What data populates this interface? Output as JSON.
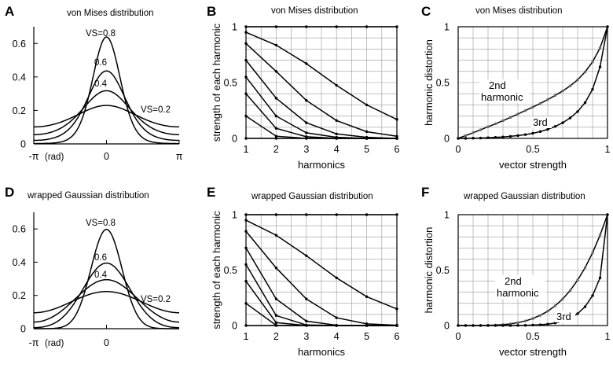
{
  "figure": {
    "panels": [
      {
        "label": "A",
        "title": "von Mises distribution"
      },
      {
        "label": "B",
        "title": "von Mises distribution"
      },
      {
        "label": "C",
        "title": "von Mises distribution"
      },
      {
        "label": "D",
        "title": "wrapped Gaussian distribution"
      },
      {
        "label": "E",
        "title": "wrapped Gaussian distribution"
      },
      {
        "label": "F",
        "title": "wrapped Gaussian distribution"
      }
    ]
  },
  "chart_data": [
    {
      "panel": "A",
      "type": "line",
      "title": "von Mises distribution",
      "family": "vonmises",
      "xticks": [
        "-π",
        "0",
        "π"
      ],
      "xunit": "(rad)",
      "xlim": [
        -3.1416,
        3.1416
      ],
      "ylim": [
        0,
        0.7
      ],
      "yticks": [
        0,
        0.2,
        0.4,
        0.6
      ],
      "series": [
        {
          "name": "VS=0.8",
          "label": "VS=0.8",
          "vs": 0.8
        },
        {
          "name": "VS=0.6",
          "label": "0.6",
          "vs": 0.6
        },
        {
          "name": "VS=0.4",
          "label": "0.4",
          "vs": 0.4
        },
        {
          "name": "VS=0.2",
          "label": "VS=0.2",
          "vs": 0.2
        }
      ]
    },
    {
      "panel": "B",
      "type": "line",
      "title": "von Mises distribution",
      "family": "vonmises",
      "xlabel": "harmonics",
      "ylabel": "strength of each harmonic",
      "x": [
        1,
        2,
        3,
        4,
        5,
        6
      ],
      "xlim": [
        1,
        6
      ],
      "ylim": [
        0,
        1
      ],
      "yticks": [
        0,
        0.5,
        1
      ],
      "series": [
        {
          "vs": 1.0,
          "values": [
            1,
            1,
            1,
            1,
            1,
            1
          ]
        },
        {
          "vs": 0.95,
          "values": [
            0.95,
            0.835,
            0.67,
            0.475,
            0.3,
            0.17
          ]
        },
        {
          "vs": 0.85,
          "values": [
            0.85,
            0.6,
            0.34,
            0.16,
            0.06,
            0.02
          ]
        },
        {
          "vs": 0.7,
          "values": [
            0.7,
            0.36,
            0.14,
            0.04,
            0.01,
            0
          ]
        },
        {
          "vs": 0.55,
          "values": [
            0.55,
            0.2,
            0.05,
            0.01,
            0,
            0
          ]
        },
        {
          "vs": 0.4,
          "values": [
            0.4,
            0.09,
            0.015,
            0,
            0,
            0
          ]
        },
        {
          "vs": 0.2,
          "values": [
            0.2,
            0.02,
            0,
            0,
            0,
            0
          ]
        },
        {
          "vs": 0.0,
          "values": [
            0,
            0,
            0,
            0,
            0,
            0
          ]
        }
      ]
    },
    {
      "panel": "C",
      "type": "line",
      "title": "von Mises distribution",
      "family": "vonmises",
      "xlabel": "vector strength",
      "ylabel": "harmonic distortion",
      "xlim": [
        0,
        1
      ],
      "ylim": [
        0,
        1
      ],
      "xticks": [
        0,
        0.5,
        1
      ],
      "yticks": [
        0,
        0.5,
        1
      ],
      "x": [
        0,
        0.05,
        0.1,
        0.15,
        0.2,
        0.25,
        0.3,
        0.35,
        0.4,
        0.45,
        0.5,
        0.55,
        0.6,
        0.65,
        0.7,
        0.75,
        0.8,
        0.85,
        0.9,
        0.95,
        1.0
      ],
      "series": [
        {
          "name": "2nd harmonic",
          "label_line1": "2nd",
          "label_line2": "harmonic",
          "values": [
            0,
            0.025,
            0.051,
            0.077,
            0.104,
            0.131,
            0.159,
            0.188,
            0.218,
            0.249,
            0.28,
            0.313,
            0.348,
            0.385,
            0.425,
            0.47,
            0.525,
            0.595,
            0.685,
            0.81,
            1.0
          ]
        },
        {
          "name": "3rd",
          "label": "3rd",
          "values": [
            0,
            0,
            0.002,
            0.003,
            0.006,
            0.009,
            0.013,
            0.018,
            0.025,
            0.034,
            0.046,
            0.061,
            0.081,
            0.107,
            0.14,
            0.183,
            0.24,
            0.32,
            0.44,
            0.64,
            1.0
          ]
        }
      ]
    },
    {
      "panel": "D",
      "type": "line",
      "title": "wrapped Gaussian distribution",
      "family": "gaussian",
      "xticks": [
        "-π",
        "0"
      ],
      "xunit": "(rad)",
      "xlim": [
        -3.1416,
        3.1416
      ],
      "ylim": [
        0,
        0.7
      ],
      "yticks": [
        0,
        0.2,
        0.4,
        0.6
      ],
      "series": [
        {
          "name": "VS=0.8",
          "label": "VS=0.8",
          "vs": 0.8
        },
        {
          "name": "VS=0.6",
          "label": "0.6",
          "vs": 0.6
        },
        {
          "name": "VS=0.4",
          "label": "0.4",
          "vs": 0.4
        },
        {
          "name": "VS=0.2",
          "label": "VS=0.2",
          "vs": 0.2
        }
      ]
    },
    {
      "panel": "E",
      "type": "line",
      "title": "wrapped Gaussian distribution",
      "family": "gaussian",
      "xlabel": "harmonics",
      "ylabel": "strength of each harmonic",
      "x": [
        1,
        2,
        3,
        4,
        5,
        6
      ],
      "xlim": [
        1,
        6
      ],
      "ylim": [
        0,
        1
      ],
      "yticks": [
        0,
        0.5,
        1
      ],
      "series": [
        {
          "vs": 1.0,
          "values": [
            1,
            1,
            1,
            1,
            1,
            1
          ]
        },
        {
          "vs": 0.95,
          "values": [
            0.95,
            0.815,
            0.63,
            0.43,
            0.26,
            0.15
          ]
        },
        {
          "vs": 0.85,
          "values": [
            0.85,
            0.52,
            0.24,
            0.07,
            0.015,
            0.003
          ]
        },
        {
          "vs": 0.7,
          "values": [
            0.7,
            0.24,
            0.04,
            0.003,
            0,
            0
          ]
        },
        {
          "vs": 0.55,
          "values": [
            0.55,
            0.09,
            0.005,
            0,
            0,
            0
          ]
        },
        {
          "vs": 0.4,
          "values": [
            0.4,
            0.026,
            0,
            0,
            0,
            0
          ]
        },
        {
          "vs": 0.2,
          "values": [
            0.2,
            0.002,
            0,
            0,
            0,
            0
          ]
        },
        {
          "vs": 0.0,
          "values": [
            0,
            0,
            0,
            0,
            0,
            0
          ]
        }
      ]
    },
    {
      "panel": "F",
      "type": "line",
      "title": "wrapped Gaussian distribution",
      "family": "gaussian",
      "xlabel": "vector strength",
      "ylabel": "harmonic distortion",
      "xlim": [
        0,
        1
      ],
      "ylim": [
        0,
        1
      ],
      "xticks": [
        0,
        0.5,
        1
      ],
      "yticks": [
        0,
        0.5,
        1
      ],
      "x": [
        0,
        0.05,
        0.1,
        0.15,
        0.2,
        0.25,
        0.3,
        0.35,
        0.4,
        0.45,
        0.5,
        0.55,
        0.6,
        0.65,
        0.7,
        0.75,
        0.8,
        0.85,
        0.9,
        0.95,
        1.0
      ],
      "series": [
        {
          "name": "2nd harmonic",
          "label_line1": "2nd",
          "label_line2": "harmonic",
          "values": [
            0,
            0,
            0,
            0.001,
            0.002,
            0.004,
            0.008,
            0.015,
            0.026,
            0.041,
            0.063,
            0.092,
            0.13,
            0.179,
            0.24,
            0.316,
            0.41,
            0.522,
            0.656,
            0.815,
            1.0
          ]
        },
        {
          "name": "3rd",
          "label": "3rd",
          "values": [
            0,
            0,
            0,
            0,
            0,
            0,
            0,
            0,
            0.001,
            0.002,
            0.004,
            0.007,
            0.013,
            0.023,
            0.04,
            0.066,
            0.107,
            0.17,
            0.27,
            0.43,
            1.0
          ]
        }
      ]
    }
  ]
}
